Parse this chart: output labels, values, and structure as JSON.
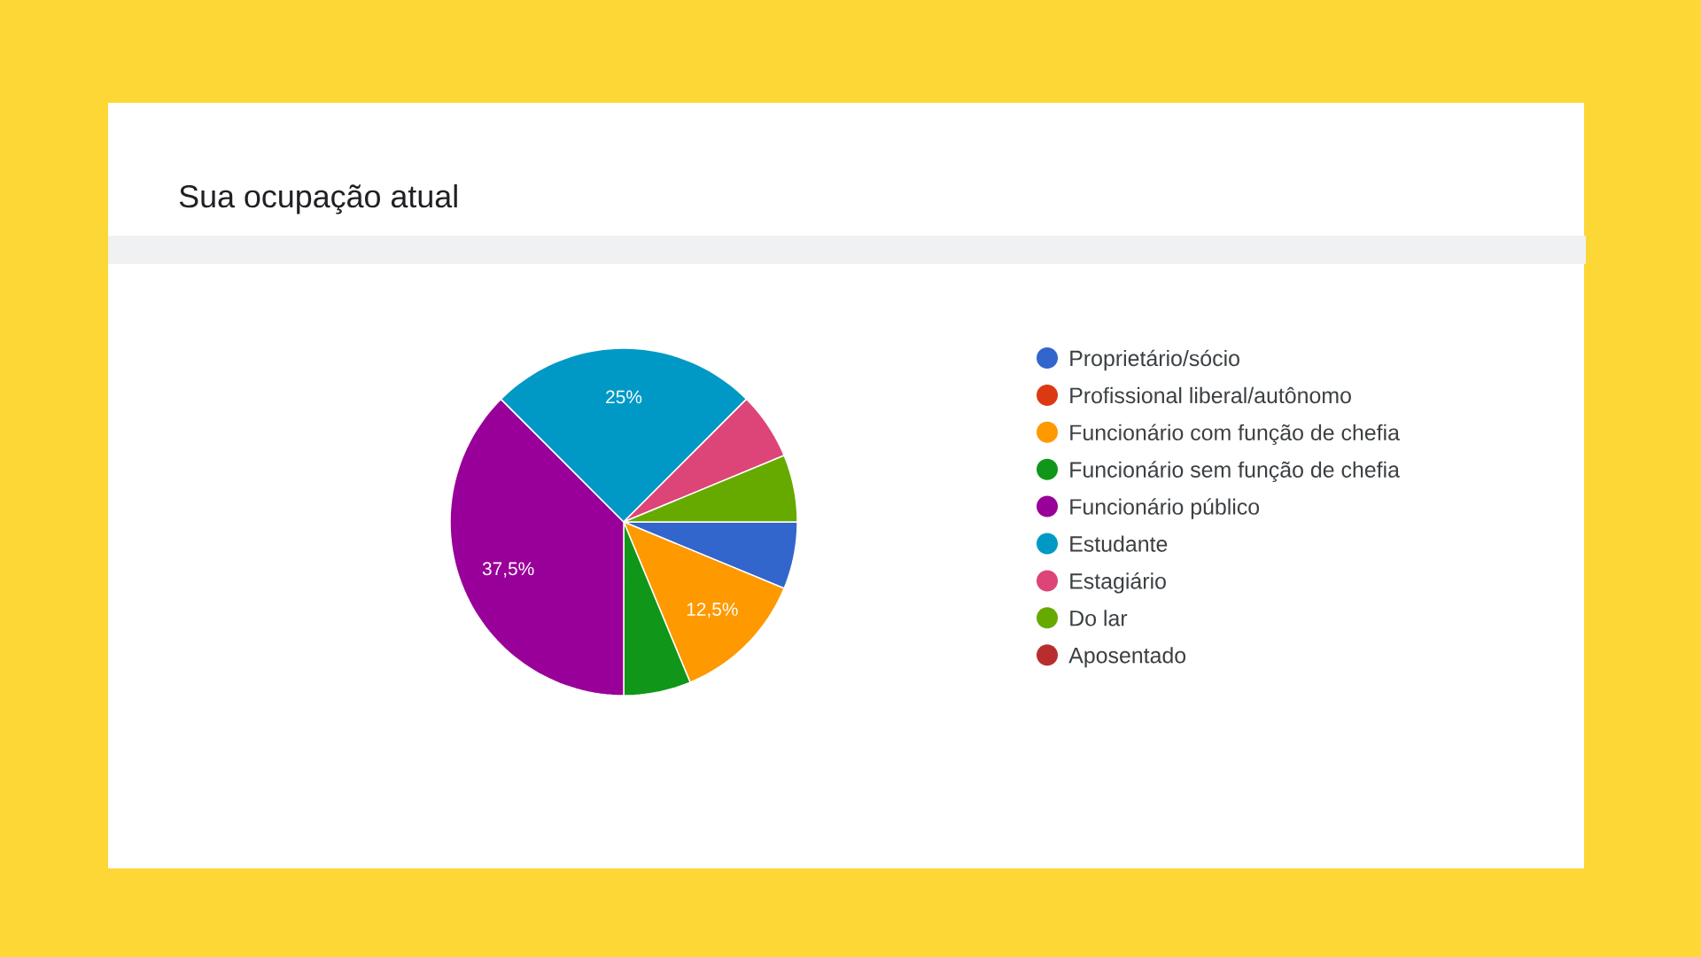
{
  "chart_data": {
    "type": "pie",
    "title": "Sua ocupação atual",
    "categories": [
      "Proprietário/sócio",
      "Profissional liberal/autônomo",
      "Funcionário com função de chefia",
      "Funcionário sem função de chefia",
      "Funcionário público",
      "Estudante",
      "Estagiário",
      "Do lar",
      "Aposentado"
    ],
    "values": [
      6.25,
      0,
      12.5,
      6.25,
      37.5,
      25,
      6.25,
      6.25,
      0
    ],
    "colors": [
      "#3366cc",
      "#dc3912",
      "#ff9900",
      "#109618",
      "#990099",
      "#0099c6",
      "#dd4477",
      "#66aa00",
      "#b82e2e"
    ],
    "value_labels": [
      null,
      null,
      "12,5%",
      null,
      "37,5%",
      "25%",
      null,
      null,
      null
    ],
    "legend": "right"
  }
}
